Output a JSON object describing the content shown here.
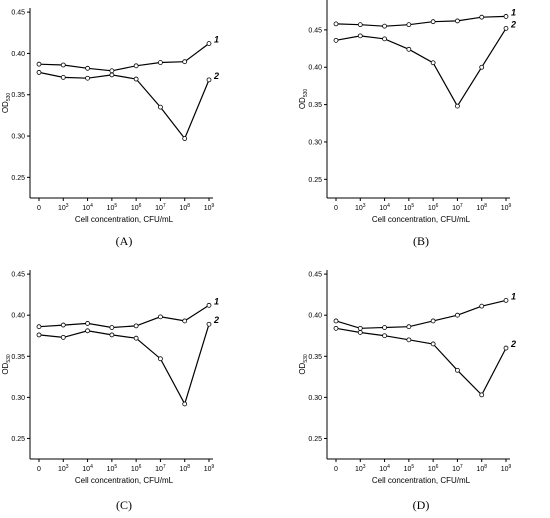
{
  "chart_data": [
    {
      "type": "line",
      "panel_label": "(A)",
      "xlabel": "Cell concentration, CFU/mL",
      "ylabel": "OD",
      "ylabel_subscript": "530",
      "categories": [
        {
          "base": "0",
          "exp": ""
        },
        {
          "base": "10",
          "exp": "3"
        },
        {
          "base": "10",
          "exp": "4"
        },
        {
          "base": "10",
          "exp": "5"
        },
        {
          "base": "10",
          "exp": "6"
        },
        {
          "base": "10",
          "exp": "7"
        },
        {
          "base": "10",
          "exp": "8"
        },
        {
          "base": "10",
          "exp": "9"
        }
      ],
      "ylim": [
        0.225,
        0.455
      ],
      "yticks": [
        "0.25",
        "0.30",
        "0.35",
        "0.40",
        "0.45"
      ],
      "series": [
        {
          "name": "1",
          "values": [
            0.387,
            0.386,
            0.382,
            0.379,
            0.385,
            0.389,
            0.39,
            0.412
          ]
        },
        {
          "name": "2",
          "values": [
            0.377,
            0.371,
            0.37,
            0.374,
            0.369,
            0.335,
            0.297,
            0.368
          ]
        }
      ]
    },
    {
      "type": "line",
      "panel_label": "(B)",
      "xlabel": "Cell concentration, CFU/mL",
      "ylabel": "OD",
      "ylabel_subscript": "530",
      "categories": [
        {
          "base": "0",
          "exp": ""
        },
        {
          "base": "10",
          "exp": "3"
        },
        {
          "base": "10",
          "exp": "4"
        },
        {
          "base": "10",
          "exp": "5"
        },
        {
          "base": "10",
          "exp": "6"
        },
        {
          "base": "10",
          "exp": "7"
        },
        {
          "base": "10",
          "exp": "8"
        },
        {
          "base": "10",
          "exp": "9"
        }
      ],
      "ylim": [
        0.225,
        0.49
      ],
      "yticks": [
        "0.25",
        "0.30",
        "0.35",
        "0.40",
        "0.45"
      ],
      "series": [
        {
          "name": "1",
          "values": [
            0.458,
            0.457,
            0.455,
            0.457,
            0.461,
            0.462,
            0.467,
            0.468
          ]
        },
        {
          "name": "2",
          "values": [
            0.436,
            0.442,
            0.438,
            0.424,
            0.406,
            0.348,
            0.4,
            0.452
          ]
        }
      ]
    },
    {
      "type": "line",
      "panel_label": "(C)",
      "xlabel": "Cell concentration, CFU/mL",
      "ylabel": "OD",
      "ylabel_subscript": "530",
      "categories": [
        {
          "base": "0",
          "exp": ""
        },
        {
          "base": "10",
          "exp": "3"
        },
        {
          "base": "10",
          "exp": "4"
        },
        {
          "base": "10",
          "exp": "5"
        },
        {
          "base": "10",
          "exp": "6"
        },
        {
          "base": "10",
          "exp": "7"
        },
        {
          "base": "10",
          "exp": "8"
        },
        {
          "base": "10",
          "exp": "9"
        }
      ],
      "ylim": [
        0.225,
        0.455
      ],
      "yticks": [
        "0.25",
        "0.30",
        "0.35",
        "0.40",
        "0.45"
      ],
      "series": [
        {
          "name": "1",
          "values": [
            0.386,
            0.388,
            0.39,
            0.385,
            0.387,
            0.398,
            0.393,
            0.412
          ]
        },
        {
          "name": "2",
          "values": [
            0.376,
            0.373,
            0.381,
            0.376,
            0.372,
            0.347,
            0.292,
            0.389
          ]
        }
      ]
    },
    {
      "type": "line",
      "panel_label": "(D)",
      "xlabel": "Cell concentration, CFU/mL",
      "ylabel": "OD",
      "ylabel_subscript": "530",
      "categories": [
        {
          "base": "0",
          "exp": ""
        },
        {
          "base": "10",
          "exp": "3"
        },
        {
          "base": "10",
          "exp": "4"
        },
        {
          "base": "10",
          "exp": "5"
        },
        {
          "base": "10",
          "exp": "6"
        },
        {
          "base": "10",
          "exp": "7"
        },
        {
          "base": "10",
          "exp": "8"
        },
        {
          "base": "10",
          "exp": "9"
        }
      ],
      "ylim": [
        0.225,
        0.455
      ],
      "yticks": [
        "0.25",
        "0.30",
        "0.35",
        "0.40",
        "0.45"
      ],
      "series": [
        {
          "name": "1",
          "values": [
            0.393,
            0.384,
            0.385,
            0.386,
            0.393,
            0.4,
            0.411,
            0.418
          ]
        },
        {
          "name": "2",
          "values": [
            0.384,
            0.379,
            0.375,
            0.37,
            0.365,
            0.333,
            0.303,
            0.36
          ]
        }
      ]
    }
  ]
}
